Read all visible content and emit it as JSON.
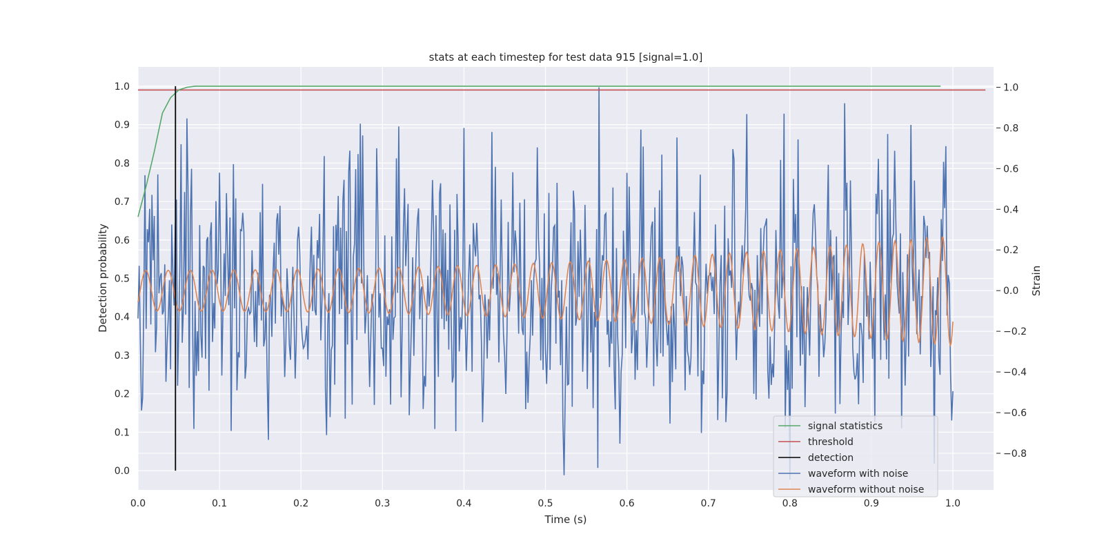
{
  "chart_data": {
    "type": "line",
    "title": "stats at each timestep for test data 915 [signal=1.0]",
    "xlabel": "Time (s)",
    "ylabel": "Detection probability",
    "y2label": "Strain",
    "xlim": [
      0.0,
      1.05
    ],
    "ylim": [
      -0.05,
      1.05
    ],
    "y2lim": [
      -0.98,
      1.1
    ],
    "xticks": [
      "0.0",
      "0.1",
      "0.2",
      "0.3",
      "0.4",
      "0.5",
      "0.6",
      "0.7",
      "0.8",
      "0.9",
      "1.0"
    ],
    "xtick_values": [
      0.0,
      0.1,
      0.2,
      0.3,
      0.4,
      0.5,
      0.6,
      0.7,
      0.8,
      0.9,
      1.0
    ],
    "yticks": [
      "0.0",
      "0.1",
      "0.2",
      "0.3",
      "0.4",
      "0.5",
      "0.6",
      "0.7",
      "0.8",
      "0.9",
      "1.0"
    ],
    "ytick_values": [
      0.0,
      0.1,
      0.2,
      0.3,
      0.4,
      0.5,
      0.6,
      0.7,
      0.8,
      0.9,
      1.0
    ],
    "y2ticks": [
      "−0.8",
      "−0.6",
      "−0.4",
      "−0.2",
      "0.0",
      "0.2",
      "0.4",
      "0.6",
      "0.8",
      "1.0"
    ],
    "y2tick_values": [
      -0.8,
      -0.6,
      -0.4,
      -0.2,
      0.0,
      0.2,
      0.4,
      0.6,
      0.8,
      1.0
    ],
    "grid": true,
    "legend_position": "lower-right",
    "series": [
      {
        "name": "signal statistics",
        "axis": "left",
        "color": "#55a868",
        "x": [
          0.0,
          0.01,
          0.02,
          0.03,
          0.04,
          0.05,
          0.06,
          0.07,
          0.1,
          0.2,
          0.4,
          0.6,
          0.8,
          0.985
        ],
        "y": [
          0.66,
          0.74,
          0.83,
          0.93,
          0.97,
          0.99,
          0.997,
          1.0,
          1.0,
          1.0,
          1.0,
          1.0,
          1.0,
          1.0
        ]
      },
      {
        "name": "threshold",
        "axis": "left",
        "color": "#c44e52",
        "x": [
          0.0,
          1.04
        ],
        "y": [
          0.99,
          0.99
        ]
      },
      {
        "name": "detection",
        "axis": "left",
        "color": "#000000",
        "x": [
          0.046,
          0.046
        ],
        "y": [
          0.0,
          1.0
        ]
      },
      {
        "name": "waveform with noise",
        "axis": "right",
        "color": "#4c72b0",
        "description_peaks": [
          {
            "x": 0.053,
            "y": 0.72
          },
          {
            "x": 0.1,
            "y": 0.58
          },
          {
            "x": 0.293,
            "y": 0.7
          },
          {
            "x": 0.4,
            "y": 0.8
          },
          {
            "x": 0.435,
            "y": 0.78
          },
          {
            "x": 0.566,
            "y": 1.0
          },
          {
            "x": 0.793,
            "y": 0.87
          },
          {
            "x": 0.92,
            "y": 0.77
          }
        ],
        "description_troughs": [
          {
            "x": 0.069,
            "y": -0.68
          },
          {
            "x": 0.114,
            "y": -0.69
          },
          {
            "x": 0.364,
            "y": -0.68
          },
          {
            "x": 0.692,
            "y": -0.7
          },
          {
            "x": 0.8,
            "y": -0.93
          },
          {
            "x": 0.977,
            "y": -0.85
          }
        ]
      },
      {
        "name": "waveform without noise",
        "axis": "right",
        "color": "#dd8452",
        "amplitude_start": 0.1,
        "amplitude_end": 0.27,
        "frequency_start_hz": 36,
        "frequency_end_hz": 52
      }
    ]
  },
  "legend": {
    "items": [
      {
        "label": "signal statistics",
        "color": "#55a868"
      },
      {
        "label": "threshold",
        "color": "#c44e52"
      },
      {
        "label": "detection",
        "color": "#000000"
      },
      {
        "label": "waveform with noise",
        "color": "#4c72b0"
      },
      {
        "label": "waveform without noise",
        "color": "#dd8452"
      }
    ]
  },
  "colors": {
    "plot_background": "#eaeaf2",
    "grid": "#ffffff",
    "text": "#262626"
  }
}
